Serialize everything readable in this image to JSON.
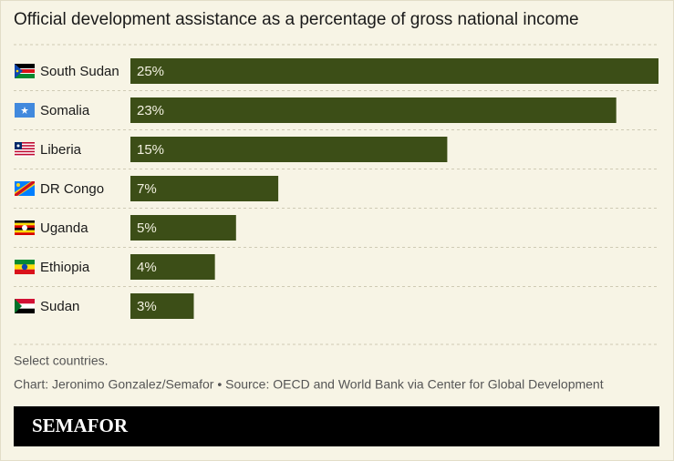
{
  "chart_data": {
    "type": "bar",
    "orientation": "horizontal",
    "title": "Official development assistance as a percentage of gross national income",
    "categories": [
      "South Sudan",
      "Somalia",
      "Liberia",
      "DR Congo",
      "Uganda",
      "Ethiopia",
      "Sudan"
    ],
    "values": [
      25,
      23,
      15,
      7,
      5,
      4,
      3
    ],
    "value_labels": [
      "25%",
      "23%",
      "15%",
      "7%",
      "5%",
      "4%",
      "3%"
    ],
    "color": "#3c4e17",
    "note": "Select countries.",
    "source": "Chart: Jeronimo Gonzalez/Semafor • Source: OECD and World Bank via Center for Global Development",
    "brand": "SEMAFOR"
  }
}
